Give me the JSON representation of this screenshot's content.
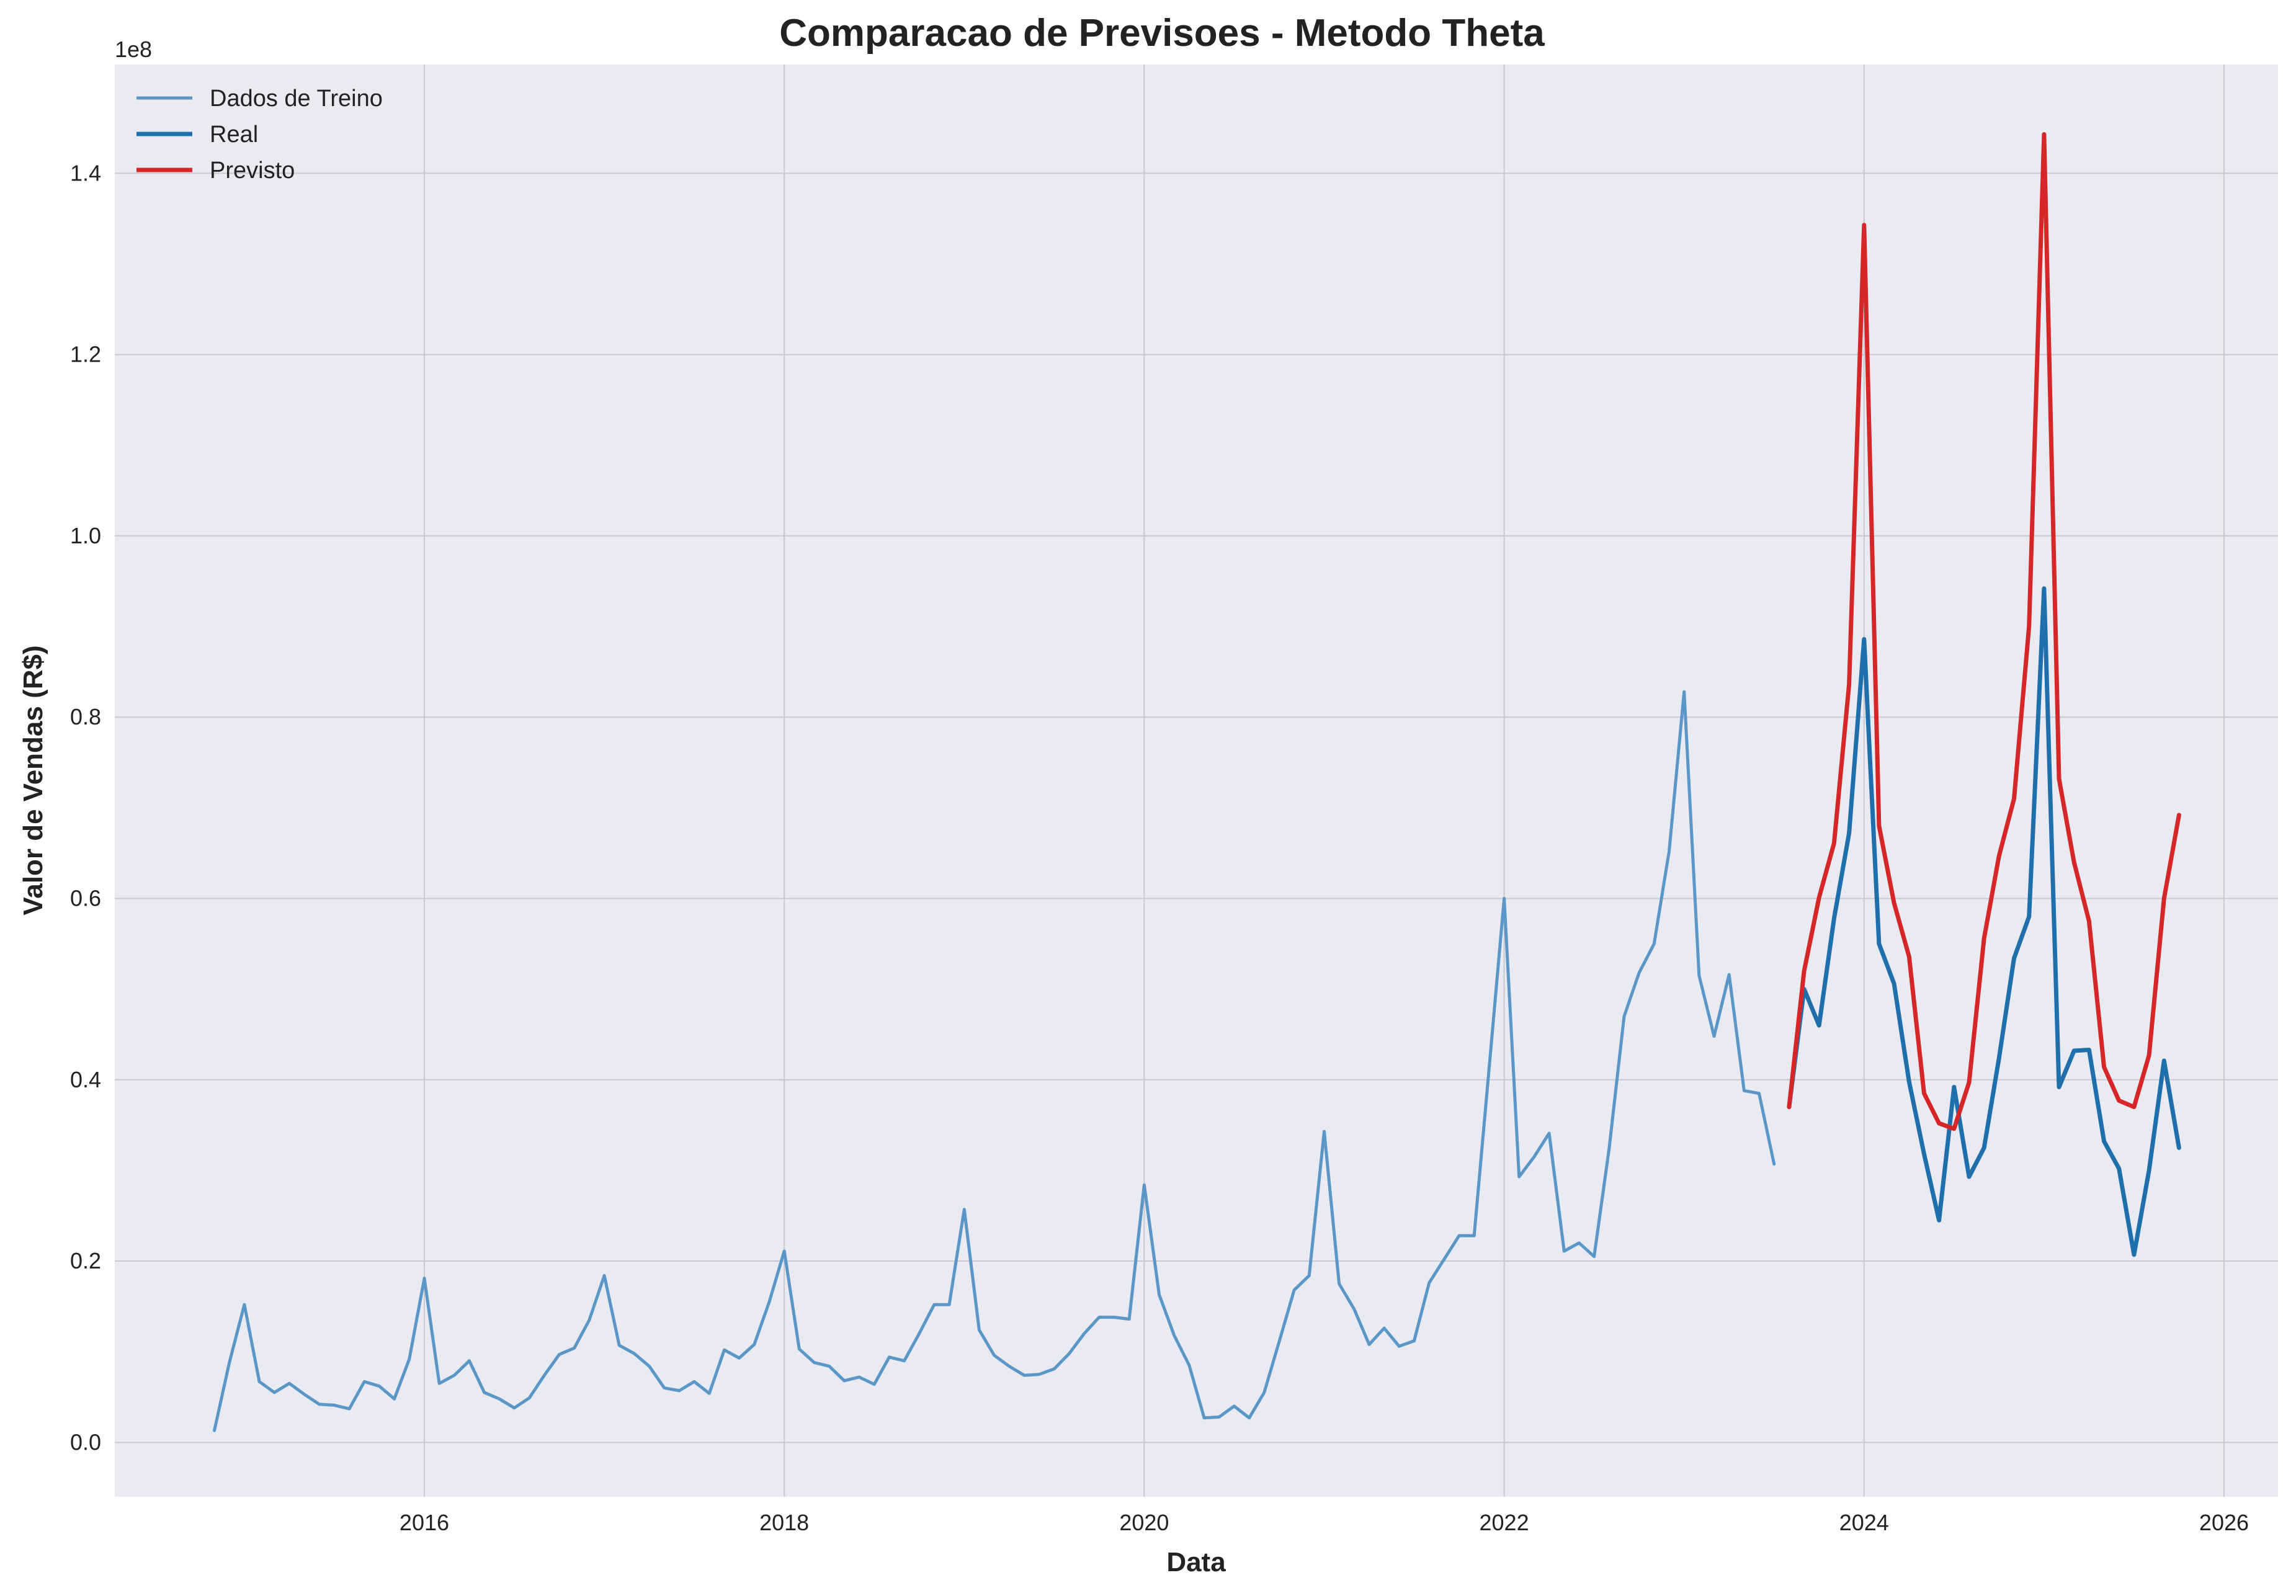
{
  "chart_data": {
    "type": "line",
    "title": "Comparacao de Previsoes - Metodo Theta",
    "xlabel": "Data",
    "ylabel": "Valor de Vendas (R$)",
    "y_offset_label": "1e8",
    "xlim": [
      2014.28,
      2026.3
    ],
    "ylim": [
      -0.06,
      1.52
    ],
    "x_ticks": [
      2016,
      2018,
      2020,
      2022,
      2024,
      2026
    ],
    "x_tick_labels": [
      "2016",
      "2018",
      "2020",
      "2022",
      "2024",
      "2026"
    ],
    "y_ticks": [
      0.0,
      0.2,
      0.4,
      0.6,
      0.8,
      1.0,
      1.2,
      1.4
    ],
    "y_tick_labels": [
      "0.0",
      "0.2",
      "0.4",
      "0.6",
      "0.8",
      "1.0",
      "1.2",
      "1.4"
    ],
    "grid": true,
    "legend_position": "top-left",
    "background": "#eaeaf2",
    "series": [
      {
        "name": "Dados de Treino",
        "color": "#5a97c7",
        "x_start": "2014-11",
        "values": [
          0.013,
          0.088,
          0.152,
          0.067,
          0.055,
          0.065,
          0.053,
          0.042,
          0.041,
          0.037,
          0.067,
          0.062,
          0.048,
          0.092,
          0.181,
          0.065,
          0.074,
          0.09,
          0.055,
          0.048,
          0.038,
          0.049,
          0.074,
          0.097,
          0.104,
          0.135,
          0.184,
          0.107,
          0.098,
          0.084,
          0.06,
          0.057,
          0.067,
          0.054,
          0.102,
          0.093,
          0.108,
          0.155,
          0.211,
          0.103,
          0.088,
          0.084,
          0.068,
          0.072,
          0.064,
          0.094,
          0.09,
          0.12,
          0.152,
          0.152,
          0.257,
          0.124,
          0.096,
          0.084,
          0.074,
          0.075,
          0.081,
          0.098,
          0.12,
          0.138,
          0.138,
          0.136,
          0.284,
          0.163,
          0.118,
          0.085,
          0.027,
          0.028,
          0.04,
          0.027,
          0.055,
          0.111,
          0.168,
          0.184,
          0.343,
          0.175,
          0.147,
          0.108,
          0.126,
          0.106,
          0.112,
          0.176,
          0.202,
          0.228,
          0.228,
          0.413,
          0.6,
          0.293,
          0.315,
          0.341,
          0.211,
          0.22,
          0.205,
          0.324,
          0.47,
          0.518,
          0.55,
          0.652,
          0.828,
          0.515,
          0.448,
          0.516,
          0.388,
          0.385,
          0.307
        ]
      },
      {
        "name": "Real",
        "color": "#1f6fad",
        "x_start": "2023-08",
        "values": [
          0.37,
          0.5,
          0.46,
          0.578,
          0.672,
          0.886,
          0.55,
          0.506,
          0.398,
          0.318,
          0.245,
          0.392,
          0.293,
          0.325,
          0.424,
          0.534,
          0.58,
          0.942,
          0.392,
          0.432,
          0.433,
          0.332,
          0.302,
          0.207,
          0.3,
          0.421,
          0.325
        ]
      },
      {
        "name": "Previsto",
        "color": "#d62728",
        "x_start": "2023-08",
        "values": [
          0.37,
          0.52,
          0.601,
          0.661,
          0.836,
          1.343,
          0.68,
          0.595,
          0.536,
          0.385,
          0.352,
          0.346,
          0.397,
          0.556,
          0.647,
          0.71,
          0.9,
          1.443,
          0.732,
          0.64,
          0.575,
          0.414,
          0.377,
          0.37,
          0.427,
          0.6,
          0.692
        ]
      }
    ]
  }
}
